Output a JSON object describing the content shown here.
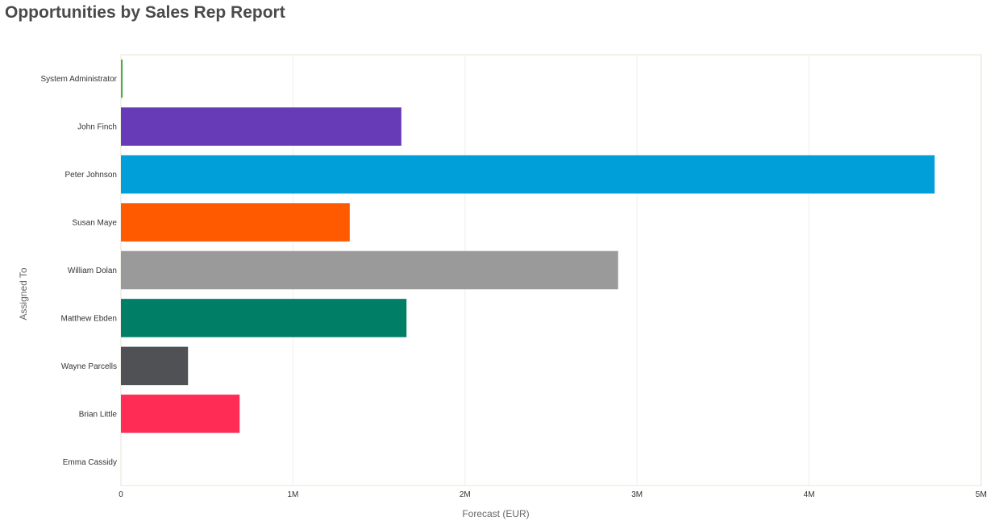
{
  "report": {
    "title": "Opportunities by Sales Rep Report"
  },
  "chart_data": {
    "type": "bar",
    "orientation": "horizontal",
    "categories": [
      "System Administrator",
      "John Finch",
      "Peter Johnson",
      "Susan Maye",
      "William Dolan",
      "Matthew Ebden",
      "Wayne Parcells",
      "Brian Little",
      "Emma Cassidy"
    ],
    "values": [
      10000,
      1630000,
      4730000,
      1330000,
      2890000,
      1660000,
      390000,
      690000,
      0
    ],
    "colors": [
      "#4cae4c",
      "#673ab7",
      "#009fd9",
      "#ff5a00",
      "#9a9a9b",
      "#007e66",
      "#505155",
      "#ff2d55",
      "#cccccc"
    ],
    "title": "",
    "xlabel": "Forecast (EUR)",
    "ylabel": "Assigned To",
    "xlim": [
      0,
      5000000
    ],
    "xticks": [
      0,
      1000000,
      2000000,
      3000000,
      4000000,
      5000000
    ],
    "xtick_labels": [
      "0",
      "1M",
      "2M",
      "3M",
      "4M",
      "5M"
    ],
    "grid": true,
    "legend": "none"
  }
}
